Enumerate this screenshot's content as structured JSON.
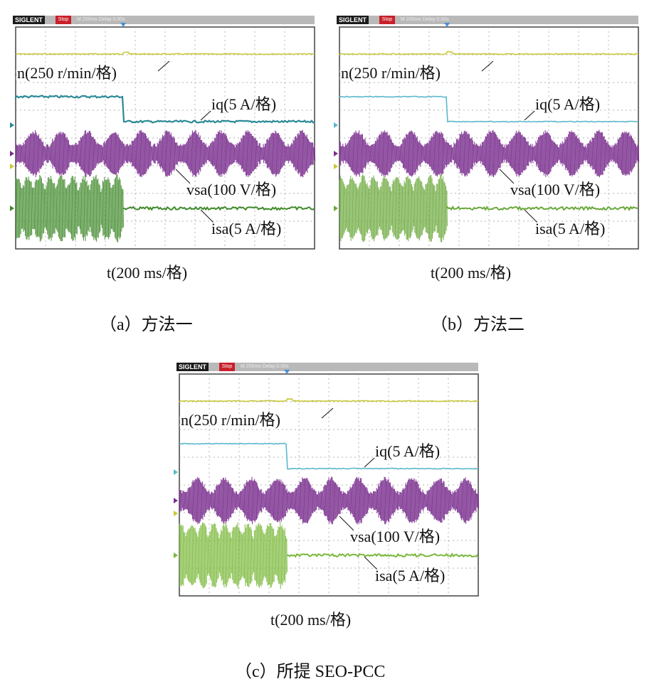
{
  "panels": [
    {
      "id": "a",
      "brand": "SIGLENT",
      "run": "Stop",
      "header_info": "M 200ms Delay:0.00s",
      "traces": {
        "n_label": "n(250 r/min/格)",
        "iq_label": "iq(5 A/格)",
        "vsa_label": "vsa(100 V/格)",
        "isa_label": "isa(5 A/格)"
      },
      "xlabel": "t(200 ms/格)",
      "caption": "（a）方法一",
      "colors": {
        "n": "#c8c83a",
        "iq": "#2a8a96",
        "vsa": "#7a2f8e",
        "isa": "#3f8a2a"
      }
    },
    {
      "id": "b",
      "brand": "SIGLENT",
      "run": "Stop",
      "header_info": "M 200ms Delay:0.00s",
      "traces": {
        "n_label": "n(250 r/min/格)",
        "iq_label": "iq(5 A/格)",
        "vsa_label": "vsa(100 V/格)",
        "isa_label": "isa(5 A/格)"
      },
      "xlabel": "t(200 ms/格)",
      "caption": "（b）方法二",
      "colors": {
        "n": "#c8c83a",
        "iq": "#5ab8cc",
        "vsa": "#7a2f8e",
        "isa": "#6aa83a"
      }
    },
    {
      "id": "c",
      "brand": "SIGLENT",
      "run": "Stop",
      "header_info": "M 200ms Delay:0.00s",
      "traces": {
        "n_label": "n(250 r/min/格)",
        "iq_label": "iq(5 A/格)",
        "vsa_label": "vsa(100 V/格)",
        "isa_label": "isa(5 A/格)"
      },
      "xlabel": "t(200 ms/格)",
      "caption": "（c）所提 SEO-PCC",
      "colors": {
        "n": "#c8c83a",
        "iq": "#5ab8cc",
        "vsa": "#7a2f8e",
        "isa": "#7ab83a"
      }
    }
  ],
  "scope": {
    "h_divisions": 10,
    "v_divisions": 8
  }
}
